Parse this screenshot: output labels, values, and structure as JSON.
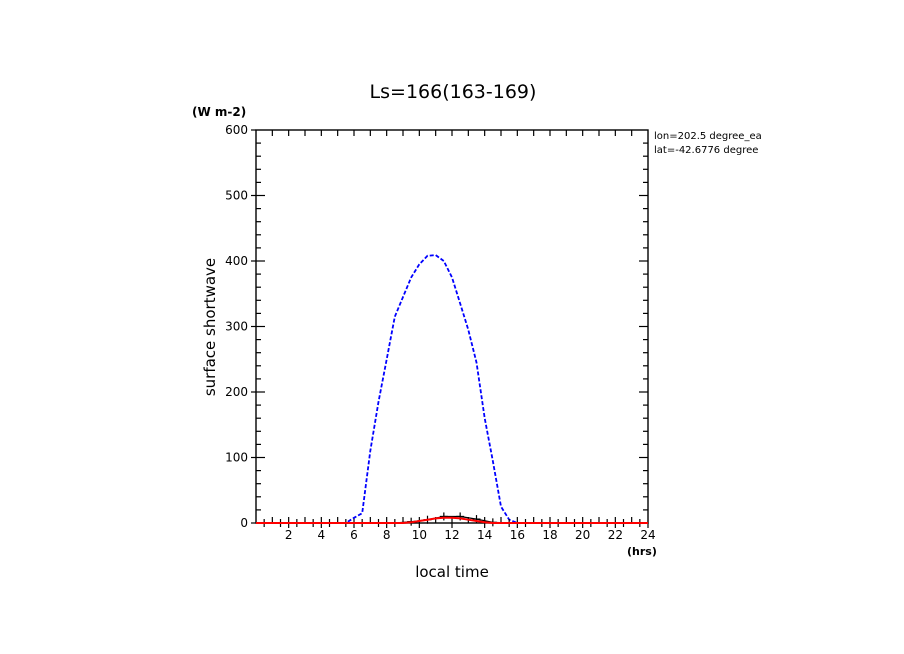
{
  "chart_data": {
    "type": "line",
    "title": "Ls=166(163-169)",
    "xlabel": "local time",
    "ylabel": "surface shortwave",
    "x_unit": "(hrs)",
    "y_unit": "(W m-2)",
    "xlim": [
      0,
      24
    ],
    "ylim": [
      0,
      600
    ],
    "x_ticks": [
      "2",
      "4",
      "6",
      "8",
      "10",
      "12",
      "14",
      "16",
      "18",
      "20",
      "22",
      "24"
    ],
    "y_ticks": [
      "0",
      "100",
      "200",
      "300",
      "400",
      "500",
      "600"
    ],
    "annotations": [
      "lon=202.5 degree_ea",
      "lat=-42.6776 degree"
    ],
    "grid": false,
    "series": [
      {
        "color": "#0000ff",
        "style": "dashed",
        "x": [
          0.5,
          1.5,
          2.5,
          3.5,
          4.5,
          5.5,
          6,
          6.5,
          7,
          7.5,
          8,
          8.5,
          9,
          9.5,
          10,
          10.5,
          11,
          11.5,
          12,
          12.5,
          13,
          13.5,
          14,
          14.5,
          15,
          15.5,
          16,
          16.5,
          17,
          17.5,
          18,
          18.5,
          19,
          19.5,
          20,
          20.5,
          21,
          21.5,
          22,
          22.5,
          23,
          23.5,
          24
        ],
        "y": [
          0,
          0,
          0,
          0,
          0,
          0,
          8,
          15,
          110,
          185,
          250,
          315,
          345,
          375,
          395,
          408,
          409,
          400,
          375,
          335,
          295,
          245,
          160,
          95,
          25,
          5,
          0,
          0,
          0,
          0,
          0,
          0,
          0,
          0,
          0,
          0,
          0,
          0,
          0,
          0,
          0,
          0,
          0
        ]
      },
      {
        "color": "#000000",
        "style": "solid-markers",
        "x": [
          0.5,
          1.5,
          2.5,
          3.5,
          4.5,
          5.5,
          6.5,
          7.5,
          8.5,
          9.5,
          10.5,
          11.5,
          12.5,
          13.5,
          14.5,
          15.5,
          16.5,
          17.5,
          18.5,
          19.5,
          20.5,
          21.5,
          22.5,
          23.5
        ],
        "y": [
          0,
          0,
          0,
          0,
          0,
          0,
          0,
          0,
          0,
          2,
          5,
          10,
          10,
          6,
          1,
          0,
          0,
          0,
          0,
          0,
          0,
          0,
          0,
          0
        ]
      },
      {
        "color": "#ff0000",
        "style": "solid",
        "x": [
          0,
          1,
          2,
          3,
          4,
          5,
          6,
          7,
          8,
          9,
          9.5,
          10,
          10.5,
          11,
          11.5,
          12,
          12.5,
          13,
          13.5,
          14,
          14.5,
          15,
          16,
          17,
          18,
          19,
          20,
          21,
          22,
          23,
          24
        ],
        "y": [
          0,
          0,
          0,
          0,
          0,
          0,
          0,
          0,
          0,
          0,
          1,
          3,
          5,
          7,
          8,
          8,
          7,
          5,
          3,
          1,
          0,
          0,
          0,
          0,
          0,
          0,
          0,
          0,
          0,
          0,
          0
        ]
      }
    ]
  }
}
